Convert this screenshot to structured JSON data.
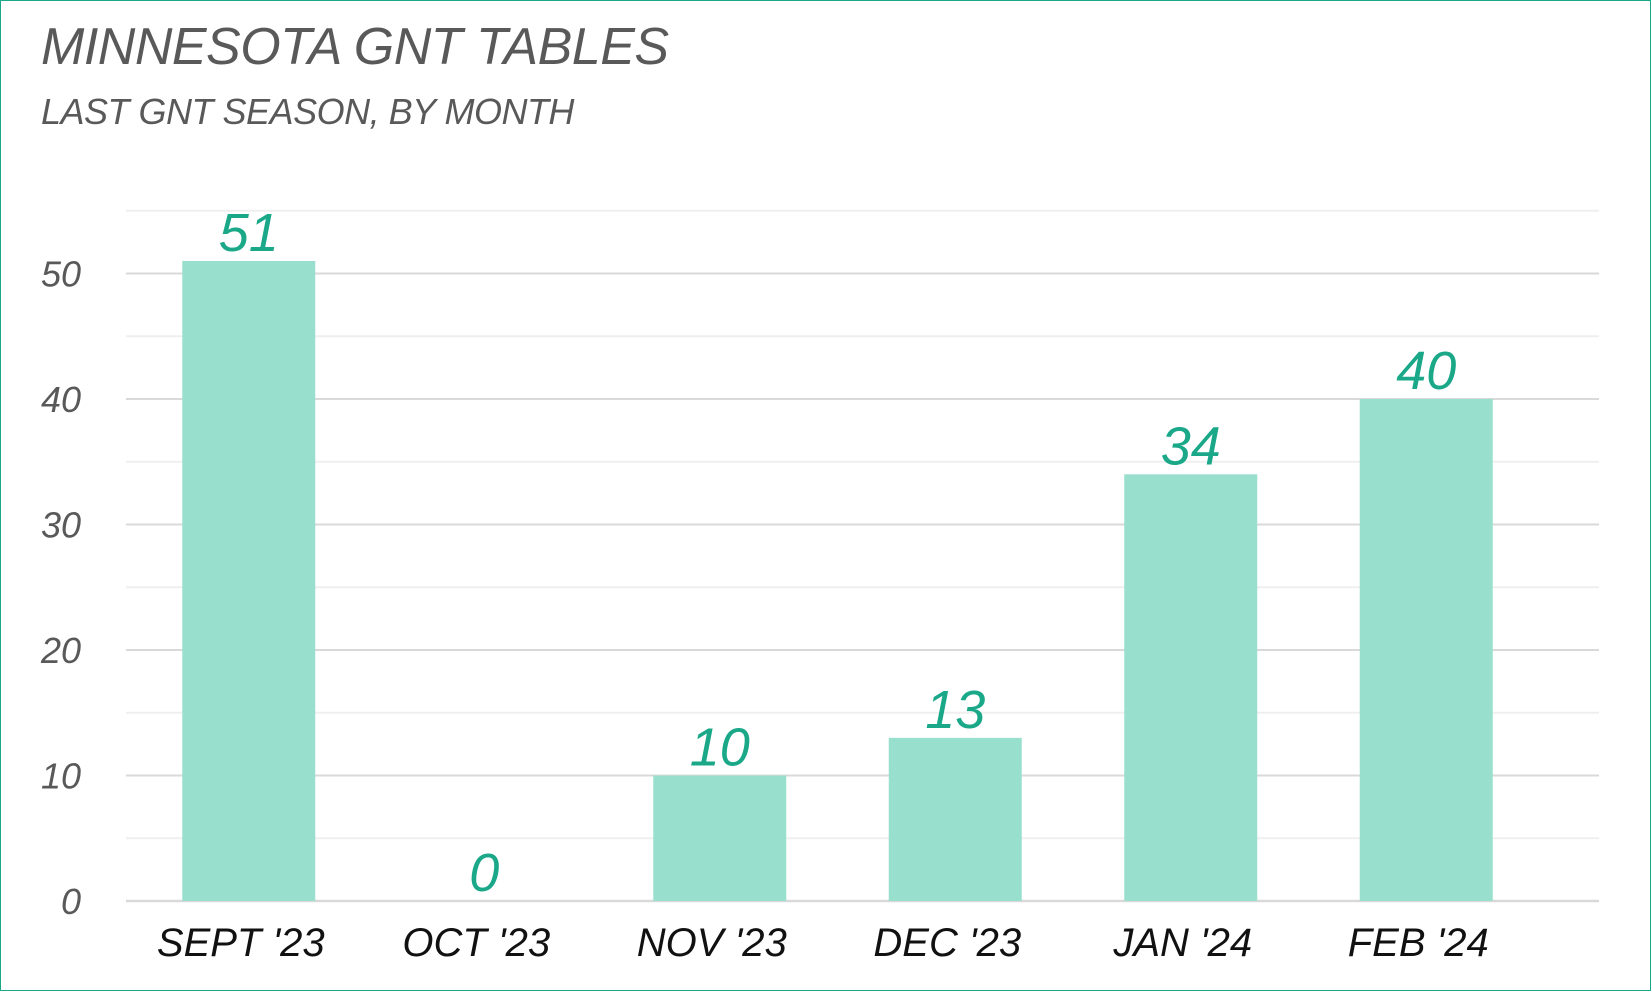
{
  "header": {
    "title": "MINNESOTA GNT TABLES",
    "subtitle": "LAST GNT SEASON, BY MONTH"
  },
  "colors": {
    "bar": "#99dfce",
    "data_label": "#1aa889",
    "gridline_major": "#d9d9d9",
    "gridline_minor": "#efefef",
    "axis_text": "#595959",
    "category_text": "#111111",
    "border": "#1aa889"
  },
  "chart_data": {
    "type": "bar",
    "title": "MINNESOTA GNT TABLES",
    "subtitle": "LAST GNT SEASON, BY MONTH",
    "categories": [
      "SEPT '23",
      "OCT '23",
      "NOV '23",
      "DEC '23",
      "JAN '24",
      "FEB '24"
    ],
    "values": [
      51,
      0,
      10,
      13,
      34,
      40
    ],
    "data_labels": [
      "51",
      "0",
      "10",
      "13",
      "34",
      "40"
    ],
    "xlabel": "",
    "ylabel": "",
    "ylim": [
      0,
      55
    ],
    "yticks": [
      0,
      10,
      20,
      30,
      40,
      50
    ],
    "ytick_labels": [
      "0",
      "10",
      "20",
      "30",
      "40",
      "50"
    ],
    "grid": true,
    "minor_grid_step": 5,
    "legend": "none"
  }
}
